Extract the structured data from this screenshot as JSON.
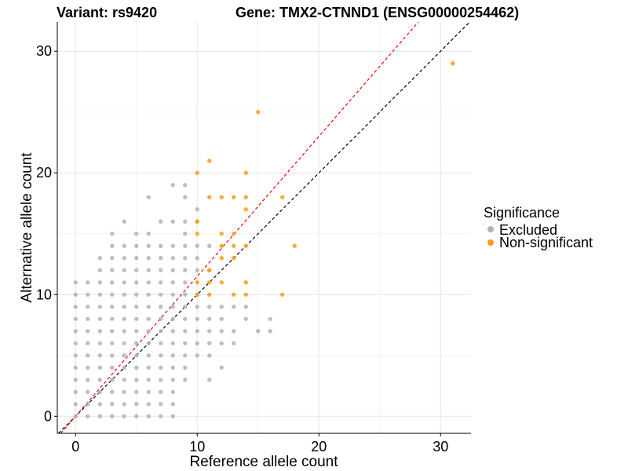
{
  "header": {
    "variant": "Variant: rs9420",
    "gene": "Gene: TMX2-CTNND1 (ENSG00000254462)"
  },
  "legend": {
    "title": "Significance",
    "items": [
      {
        "label": "Excluded",
        "color": "#b3b3b3"
      },
      {
        "label": "Non-significant",
        "color": "#ff9a1a"
      }
    ]
  },
  "chart_data": {
    "type": "scatter",
    "title": "Variant: rs9420    Gene: TMX2-CTNND1 (ENSG00000254462)",
    "xlabel": "Reference allele count",
    "ylabel": "Alternative allele count",
    "xlim": [
      -1.5,
      32.5
    ],
    "ylim": [
      -1.4,
      32.4
    ],
    "xticks": [
      0,
      10,
      20,
      30
    ],
    "yticks": [
      0,
      10,
      20,
      30
    ],
    "grid": true,
    "legend_position": "right",
    "reference_lines": [
      {
        "name": "y = x",
        "slope": 1,
        "intercept": 0,
        "color": "#000000",
        "dash": "dashed"
      },
      {
        "name": "fit",
        "slope": 1.15,
        "intercept": 0,
        "color": "#ff0000",
        "dash": "dashed"
      }
    ],
    "series": [
      {
        "name": "Excluded",
        "color": "#b3b3b3",
        "points": [
          [
            0,
            0
          ],
          [
            0,
            1
          ],
          [
            0,
            2
          ],
          [
            0,
            3
          ],
          [
            0,
            4
          ],
          [
            0,
            5
          ],
          [
            0,
            6
          ],
          [
            0,
            7
          ],
          [
            0,
            8
          ],
          [
            0,
            9
          ],
          [
            0,
            10
          ],
          [
            0,
            11
          ],
          [
            1,
            0
          ],
          [
            1,
            1
          ],
          [
            1,
            2
          ],
          [
            1,
            3
          ],
          [
            1,
            4
          ],
          [
            1,
            5
          ],
          [
            1,
            6
          ],
          [
            1,
            7
          ],
          [
            1,
            8
          ],
          [
            1,
            9
          ],
          [
            1,
            10
          ],
          [
            1,
            11
          ],
          [
            2,
            0
          ],
          [
            2,
            1
          ],
          [
            2,
            2
          ],
          [
            2,
            3
          ],
          [
            2,
            4
          ],
          [
            2,
            5
          ],
          [
            2,
            6
          ],
          [
            2,
            7
          ],
          [
            2,
            8
          ],
          [
            2,
            9
          ],
          [
            2,
            10
          ],
          [
            2,
            11
          ],
          [
            2,
            12
          ],
          [
            2,
            13
          ],
          [
            3,
            0
          ],
          [
            3,
            1
          ],
          [
            3,
            2
          ],
          [
            3,
            3
          ],
          [
            3,
            4
          ],
          [
            3,
            5
          ],
          [
            3,
            6
          ],
          [
            3,
            7
          ],
          [
            3,
            8
          ],
          [
            3,
            9
          ],
          [
            3,
            10
          ],
          [
            3,
            11
          ],
          [
            3,
            12
          ],
          [
            3,
            13
          ],
          [
            3,
            14
          ],
          [
            3,
            15
          ],
          [
            4,
            0
          ],
          [
            4,
            1
          ],
          [
            4,
            2
          ],
          [
            4,
            3
          ],
          [
            4,
            4
          ],
          [
            4,
            5
          ],
          [
            4,
            6
          ],
          [
            4,
            7
          ],
          [
            4,
            8
          ],
          [
            4,
            9
          ],
          [
            4,
            10
          ],
          [
            4,
            11
          ],
          [
            4,
            12
          ],
          [
            4,
            13
          ],
          [
            4,
            14
          ],
          [
            4,
            16
          ],
          [
            5,
            0
          ],
          [
            5,
            1
          ],
          [
            5,
            2
          ],
          [
            5,
            3
          ],
          [
            5,
            4
          ],
          [
            5,
            5
          ],
          [
            5,
            6
          ],
          [
            5,
            7
          ],
          [
            5,
            8
          ],
          [
            5,
            9
          ],
          [
            5,
            10
          ],
          [
            5,
            11
          ],
          [
            5,
            12
          ],
          [
            5,
            13
          ],
          [
            5,
            14
          ],
          [
            5,
            15
          ],
          [
            6,
            0
          ],
          [
            6,
            1
          ],
          [
            6,
            2
          ],
          [
            6,
            3
          ],
          [
            6,
            4
          ],
          [
            6,
            5
          ],
          [
            6,
            6
          ],
          [
            6,
            7
          ],
          [
            6,
            8
          ],
          [
            6,
            9
          ],
          [
            6,
            10
          ],
          [
            6,
            11
          ],
          [
            6,
            12
          ],
          [
            6,
            13
          ],
          [
            6,
            14
          ],
          [
            6,
            15
          ],
          [
            6,
            18
          ],
          [
            7,
            0
          ],
          [
            7,
            1
          ],
          [
            7,
            2
          ],
          [
            7,
            3
          ],
          [
            7,
            4
          ],
          [
            7,
            5
          ],
          [
            7,
            6
          ],
          [
            7,
            7
          ],
          [
            7,
            8
          ],
          [
            7,
            9
          ],
          [
            7,
            10
          ],
          [
            7,
            11
          ],
          [
            7,
            12
          ],
          [
            7,
            13
          ],
          [
            7,
            14
          ],
          [
            7,
            16
          ],
          [
            8,
            0
          ],
          [
            8,
            1
          ],
          [
            8,
            2
          ],
          [
            8,
            3
          ],
          [
            8,
            4
          ],
          [
            8,
            5
          ],
          [
            8,
            6
          ],
          [
            8,
            7
          ],
          [
            8,
            8
          ],
          [
            8,
            9
          ],
          [
            8,
            10
          ],
          [
            8,
            11
          ],
          [
            8,
            12
          ],
          [
            8,
            13
          ],
          [
            8,
            14
          ],
          [
            8,
            16
          ],
          [
            8,
            19
          ],
          [
            9,
            3
          ],
          [
            9,
            4
          ],
          [
            9,
            5
          ],
          [
            9,
            6
          ],
          [
            9,
            7
          ],
          [
            9,
            8
          ],
          [
            9,
            9
          ],
          [
            9,
            10
          ],
          [
            9,
            11
          ],
          [
            9,
            12
          ],
          [
            9,
            13
          ],
          [
            9,
            14
          ],
          [
            9,
            15
          ],
          [
            9,
            16
          ],
          [
            9,
            18
          ],
          [
            9,
            19
          ],
          [
            10,
            5
          ],
          [
            10,
            6
          ],
          [
            10,
            7
          ],
          [
            10,
            8
          ],
          [
            10,
            9
          ],
          [
            10,
            10
          ],
          [
            10,
            12
          ],
          [
            10,
            13
          ],
          [
            10,
            14
          ],
          [
            10,
            16
          ],
          [
            10,
            17
          ],
          [
            11,
            3
          ],
          [
            11,
            5
          ],
          [
            11,
            6
          ],
          [
            11,
            7
          ],
          [
            11,
            8
          ],
          [
            11,
            9
          ],
          [
            11,
            12
          ],
          [
            11,
            14
          ],
          [
            12,
            4
          ],
          [
            12,
            6
          ],
          [
            12,
            7
          ],
          [
            12,
            8
          ],
          [
            12,
            9
          ],
          [
            13,
            6
          ],
          [
            13,
            7
          ],
          [
            13,
            9
          ],
          [
            14,
            8
          ],
          [
            14,
            9
          ],
          [
            15,
            7
          ],
          [
            16,
            7
          ],
          [
            16,
            8
          ]
        ]
      },
      {
        "name": "Non-significant",
        "color": "#ff9a1a",
        "points": [
          [
            10,
            10
          ],
          [
            10,
            11
          ],
          [
            10,
            15
          ],
          [
            10,
            16
          ],
          [
            10,
            20
          ],
          [
            11,
            10
          ],
          [
            11,
            11
          ],
          [
            11,
            12
          ],
          [
            11,
            18
          ],
          [
            11,
            21
          ],
          [
            12,
            11
          ],
          [
            12,
            13
          ],
          [
            12,
            14
          ],
          [
            12,
            15
          ],
          [
            12,
            18
          ],
          [
            13,
            10
          ],
          [
            13,
            13
          ],
          [
            13,
            14
          ],
          [
            13,
            15
          ],
          [
            13,
            18
          ],
          [
            14,
            10
          ],
          [
            14,
            11
          ],
          [
            14,
            14
          ],
          [
            14,
            17
          ],
          [
            14,
            18
          ],
          [
            14,
            20
          ],
          [
            15,
            25
          ],
          [
            17,
            10
          ],
          [
            17,
            18
          ],
          [
            18,
            14
          ],
          [
            31,
            29
          ]
        ]
      }
    ]
  }
}
